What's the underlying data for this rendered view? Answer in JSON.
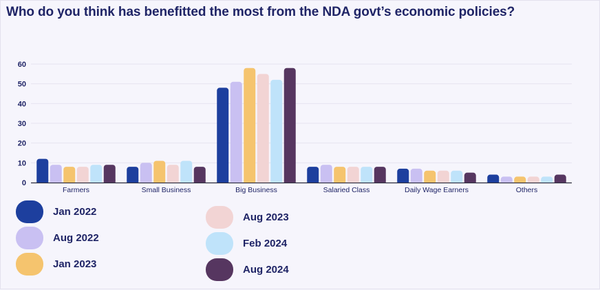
{
  "title": "Who do you think has benefitted the most from the NDA govt’s economic policies?",
  "chart_data": {
    "type": "bar",
    "title": "Who do you think has benefitted the most from the NDA govt’s economic policies?",
    "xlabel": "",
    "ylabel": "",
    "ylim": [
      0,
      60
    ],
    "yticks": [
      0,
      10,
      20,
      30,
      40,
      50,
      60
    ],
    "grid": true,
    "legend_position": "bottom",
    "categories": [
      "Farmers",
      "Small Business",
      "Big Business",
      "Salaried Class",
      "Daily Wage Earners",
      "Others"
    ],
    "series": [
      {
        "name": "Jan 2022",
        "color": "#1d3f9e",
        "values": [
          12,
          8,
          48,
          8,
          7,
          4
        ]
      },
      {
        "name": "Aug 2022",
        "color": "#c9c0f2",
        "values": [
          9,
          10,
          51,
          9,
          7,
          3
        ]
      },
      {
        "name": "Jan 2023",
        "color": "#f5c46e",
        "values": [
          8,
          11,
          58,
          8,
          6,
          3
        ]
      },
      {
        "name": "Aug 2023",
        "color": "#f2d4d4",
        "values": [
          8,
          9,
          55,
          8,
          6,
          3
        ]
      },
      {
        "name": "Feb 2024",
        "color": "#bfe3fa",
        "values": [
          9,
          11,
          52,
          8,
          6,
          3
        ]
      },
      {
        "name": "Aug 2024",
        "color": "#563660",
        "values": [
          9,
          8,
          58,
          8,
          5,
          4
        ]
      }
    ]
  }
}
